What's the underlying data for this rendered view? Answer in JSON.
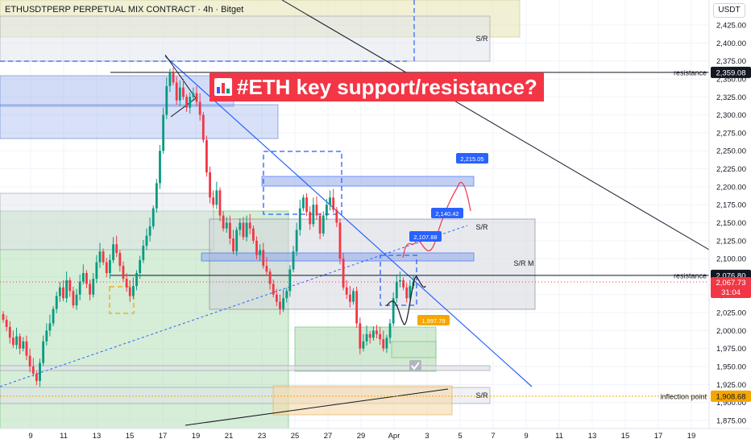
{
  "header": {
    "symbol_title": "ETHUSDTPERP PERPETUAL MIX CONTRACT · 4h · Bitget",
    "currency": "USDT"
  },
  "headline": "#ETH key support/resistance?",
  "colors": {
    "up": "#089981",
    "down": "#f23645",
    "trendline": "#2962ff",
    "price_tag": "#f23645",
    "level_tag": "#131722",
    "inflection_tag": "#f7a600"
  },
  "price_axis": {
    "ticks": [
      "2,425.00",
      "2,400.00",
      "2,375.00",
      "2,350.00",
      "2,325.00",
      "2,300.00",
      "2,275.00",
      "2,250.00",
      "2,225.00",
      "2,200.00",
      "2,175.00",
      "2,150.00",
      "2,125.00",
      "2,100.00",
      "2,075.00",
      "2,050.00",
      "2,025.00",
      "2,000.00",
      "1,975.00",
      "1,950.00",
      "1,925.00",
      "1,900.00",
      "1,875.00"
    ],
    "current_price": "2,067.73",
    "countdown": "31:04"
  },
  "time_axis": {
    "ticks": [
      "9",
      "11",
      "13",
      "15",
      "17",
      "19",
      "21",
      "23",
      "25",
      "27",
      "29",
      "Apr",
      "3",
      "5",
      "7",
      "9",
      "11",
      "13",
      "15",
      "17",
      "19"
    ]
  },
  "chart_data": {
    "type": "candlestick",
    "symbol": "ETHUSDTPERP",
    "timeframe": "4h",
    "exchange": "Bitget",
    "ylim": [
      1865,
      2440
    ],
    "grid": true,
    "levels": [
      {
        "label": "resistance",
        "value": 2359.08,
        "value_text": "2,359.08"
      },
      {
        "label": "resistance",
        "value": 2076.8,
        "value_text": "2,076.80"
      },
      {
        "label": "inflection point",
        "value": 1908.68,
        "value_text": "1,908.68"
      }
    ],
    "zone_labels": [
      "S/R",
      "S/R",
      "S/R M",
      "S/R"
    ],
    "projection_labels": [
      {
        "value": 2215.05,
        "text": "2,215.05"
      },
      {
        "value": 2140.42,
        "text": "2,140.42"
      },
      {
        "value": 2107.88,
        "text": "2,107.88"
      },
      {
        "value": 1997.79,
        "text": "1,997.79"
      }
    ],
    "closes": [
      2015,
      2005,
      1990,
      1980,
      1992,
      1975,
      1985,
      1965,
      1950,
      1940,
      1930,
      1955,
      1985,
      2000,
      2010,
      2030,
      2048,
      2060,
      2045,
      2070,
      2055,
      2035,
      2050,
      2068,
      2080,
      2065,
      2050,
      2072,
      2095,
      2110,
      2095,
      2080,
      2098,
      2120,
      2108,
      2090,
      2072,
      2060,
      2048,
      2062,
      2080,
      2098,
      2118,
      2132,
      2145,
      2170,
      2205,
      2250,
      2300,
      2340,
      2360,
      2345,
      2320,
      2338,
      2325,
      2310,
      2325,
      2330,
      2318,
      2300,
      2265,
      2220,
      2185,
      2175,
      2195,
      2160,
      2142,
      2150,
      2128,
      2110,
      2140,
      2150,
      2130,
      2150,
      2142,
      2125,
      2105,
      2112,
      2090,
      2082,
      2065,
      2050,
      2040,
      2030,
      2045,
      2055,
      2085,
      2110,
      2140,
      2170,
      2185,
      2165,
      2148,
      2175,
      2160,
      2135,
      2160,
      2175,
      2185,
      2168,
      2150,
      2100,
      2060,
      2050,
      2040,
      2055,
      2010,
      1975,
      1985,
      1995,
      1990,
      2000,
      1995,
      1988,
      1975,
      1990,
      2010,
      2045,
      2068,
      2070,
      2060,
      2045,
      2062,
      2067.73
    ]
  }
}
